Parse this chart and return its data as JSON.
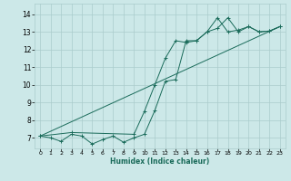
{
  "xlabel": "Humidex (Indice chaleur)",
  "ylabel": "",
  "bg_color": "#cce8e8",
  "grid_color": "#aacccc",
  "line_color": "#1a6b5a",
  "xlim": [
    -0.5,
    23.5
  ],
  "ylim": [
    6.4,
    14.6
  ],
  "yticks": [
    7,
    8,
    9,
    10,
    11,
    12,
    13,
    14
  ],
  "xticks": [
    0,
    1,
    2,
    3,
    4,
    5,
    6,
    7,
    8,
    9,
    10,
    11,
    12,
    13,
    14,
    15,
    16,
    17,
    18,
    19,
    20,
    21,
    22,
    23
  ],
  "series1_x": [
    0,
    1,
    2,
    3,
    4,
    5,
    6,
    7,
    8,
    9,
    10,
    11,
    12,
    13,
    14,
    15,
    16,
    17,
    18,
    19,
    20,
    21,
    22,
    23
  ],
  "series1_y": [
    7.1,
    7.0,
    6.8,
    7.2,
    7.1,
    6.65,
    6.9,
    7.1,
    6.75,
    7.0,
    7.2,
    8.55,
    10.2,
    10.3,
    12.5,
    12.5,
    13.0,
    13.2,
    13.8,
    13.0,
    13.3,
    13.0,
    13.05,
    13.3
  ],
  "series2_x": [
    0,
    3,
    9,
    10,
    11,
    12,
    13,
    14,
    15,
    16,
    17,
    18,
    19,
    20,
    21,
    22,
    23
  ],
  "series2_y": [
    7.1,
    7.3,
    7.2,
    8.5,
    10.0,
    11.5,
    12.5,
    12.4,
    12.5,
    13.0,
    13.8,
    13.0,
    13.1,
    13.3,
    13.0,
    13.05,
    13.3
  ],
  "series3_x": [
    0,
    23
  ],
  "series3_y": [
    7.1,
    13.3
  ]
}
